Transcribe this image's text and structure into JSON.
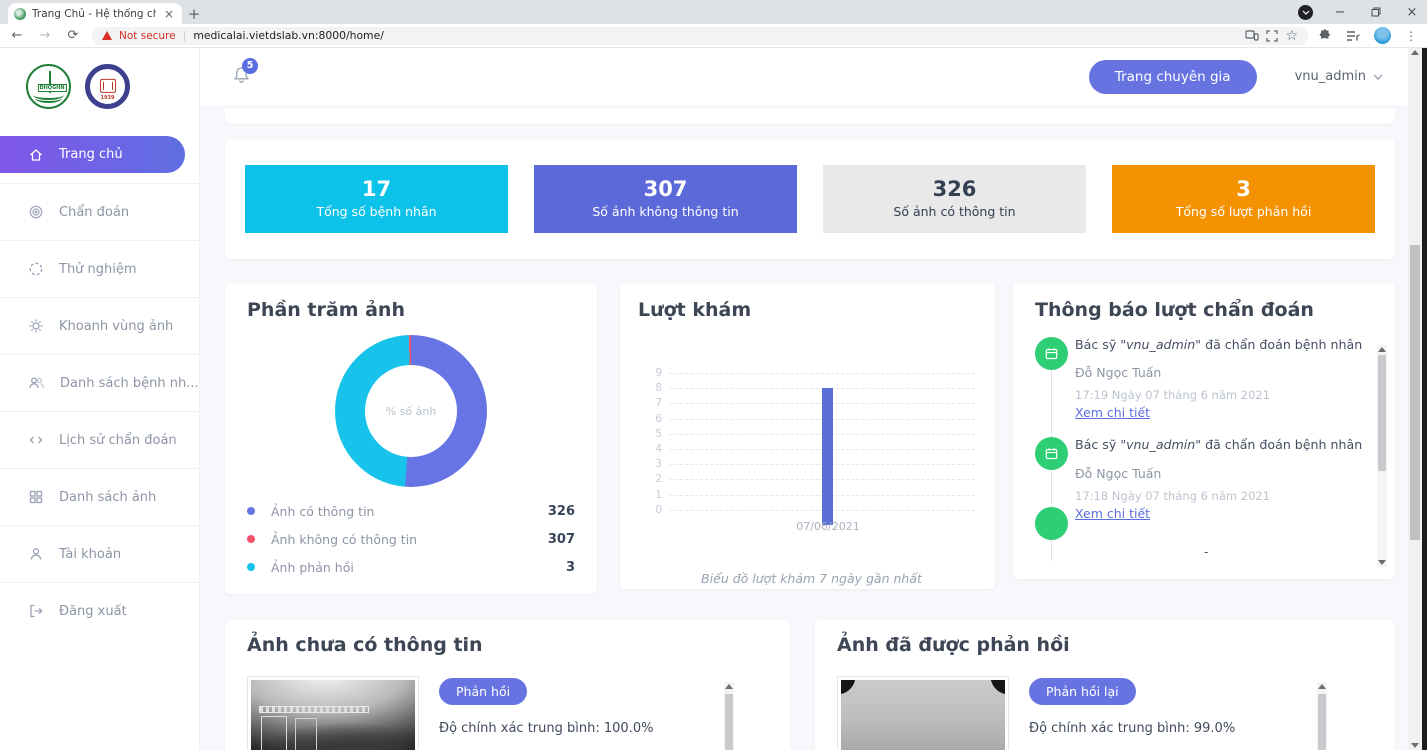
{
  "browser": {
    "tab_title": "Trang Chủ - Hệ thống chẩn đoán",
    "close_tab": "×",
    "new_tab": "+",
    "back": "←",
    "forward": "→",
    "reload": "⟳",
    "security_warning": "Not secure",
    "url": "medicalai.vietdslab.vn:8000/home/",
    "bookmark_star": "☆",
    "minimize": "−",
    "close_window": "×",
    "menu": "⋮"
  },
  "sidebar": {
    "items": [
      {
        "label": "Trang chủ",
        "icon": "home-icon",
        "active": true
      },
      {
        "label": "Chẩn đoán",
        "icon": "target-icon"
      },
      {
        "label": "Thử nghiệm",
        "icon": "circle-icon"
      },
      {
        "label": "Khoanh vùng ảnh",
        "icon": "gear-icon"
      },
      {
        "label": "Danh sách bệnh nh...",
        "icon": "users-icon"
      },
      {
        "label": "Lịch sử chẩn đoán",
        "icon": "code-icon"
      },
      {
        "label": "Danh sách ảnh",
        "icon": "grid-icon"
      },
      {
        "label": "Tài khoản",
        "icon": "user-icon"
      },
      {
        "label": "Đăng xuất",
        "icon": "logout-icon"
      }
    ],
    "logo1_text": "ĐHQGHN",
    "logo2_year": "1939"
  },
  "header": {
    "notification_count": "5",
    "expert_button": "Trang chuyên gia",
    "username": "vnu_admin"
  },
  "stats": [
    {
      "value": "17",
      "label": "Tổng số bệnh nhân",
      "color": "#0cc2e8"
    },
    {
      "value": "307",
      "label": "Số ảnh không thông tin",
      "color": "#5c69d9"
    },
    {
      "value": "326",
      "label": "Số ảnh có thông tin",
      "color": "#e9e9ea"
    },
    {
      "value": "3",
      "label": "Tổng số lượt phản hồi",
      "color": "#f59204"
    }
  ],
  "chart_data": [
    {
      "type": "pie",
      "title": "Phần trăm ảnh",
      "labels": [
        "Ảnh có thông tin",
        "Ảnh không có thông tin",
        "Ảnh phản hồi"
      ],
      "values": [
        326,
        307,
        3
      ],
      "slice_colors": [
        "#6674e4",
        "#17c3ea",
        "#f4516c"
      ],
      "center_label": "% số ảnh",
      "legend": [
        {
          "label": "Ảnh có thông tin",
          "value": "326",
          "color": "#6674e4"
        },
        {
          "label": "Ảnh không có thông tin",
          "value": "307",
          "color": "#f4516c"
        },
        {
          "label": "Ảnh phản hồi",
          "value": "3",
          "color": "#17c3ea"
        }
      ],
      "legend_position": "bottom"
    },
    {
      "type": "bar",
      "title": "Lượt khám",
      "categories": [
        "07/06/2021"
      ],
      "values": [
        9
      ],
      "bar_color": "#5a6fd8",
      "ylim": [
        0,
        9
      ],
      "grid": "dashed",
      "caption": "Biểu đồ lượt khám 7 ngày gần nhất"
    }
  ],
  "notifications": {
    "title": "Thông báo lượt chẩn đoán",
    "items": [
      {
        "prefix": "Bác sỹ ",
        "user": "\"vnu_admin\"",
        "suffix": " đã chẩn đoán bệnh nhân",
        "patient": "Đỗ Ngọc Tuấn",
        "time": "17:19 Ngày 07 tháng 6 năm 2021",
        "link": "Xem chi tiết"
      },
      {
        "prefix": "Bác sỹ ",
        "user": "\"vnu_admin\"",
        "suffix": " đã chẩn đoán bệnh nhân",
        "patient": "Đỗ Ngọc Tuấn",
        "time": "17:18 Ngày 07 tháng 6 năm 2021",
        "link": "Xem chi tiết"
      }
    ],
    "overflow_hint": "-"
  },
  "images_pending": {
    "title": "Ảnh chưa có thông tin",
    "button": "Phản hồi",
    "accuracy": "Độ chính xác trung bình: 100.0%"
  },
  "images_replied": {
    "title": "Ảnh đã được phản hồi",
    "button": "Phản hồi lại",
    "accuracy": "Độ chính xác trung bình: 99.0%"
  }
}
